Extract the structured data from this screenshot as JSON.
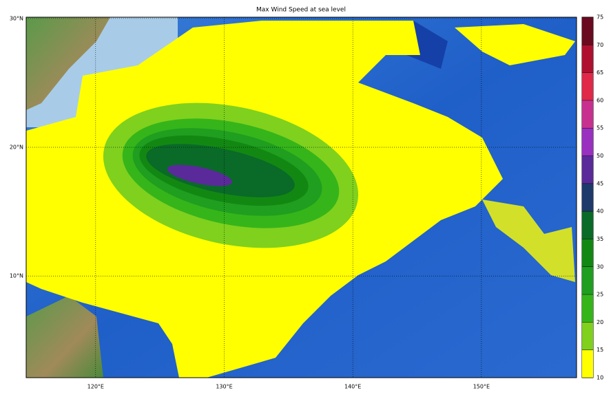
{
  "title": "Max Wind Speed at sea level",
  "map": {
    "lonlim": [
      114.6,
      157.4
    ],
    "latlim": [
      2.1,
      30.1
    ],
    "lon_ticks": [
      {
        "value": 120,
        "label": "120°E"
      },
      {
        "value": 130,
        "label": "130°E"
      },
      {
        "value": 140,
        "label": "140°E"
      },
      {
        "value": 150,
        "label": "150°E"
      }
    ],
    "lat_ticks": [
      {
        "value": 10,
        "label": "10°N"
      },
      {
        "value": 20,
        "label": "20°N"
      },
      {
        "value": 30,
        "label": "30°N"
      }
    ],
    "grid": true
  },
  "colorbar": {
    "levels": [
      10,
      15,
      20,
      25,
      30,
      35,
      40,
      45,
      50,
      55,
      60,
      65,
      70,
      75
    ],
    "colors": [
      "#ffff00",
      "#7fd11d",
      "#35b51a",
      "#1f9e1f",
      "#128812",
      "#0a6a28",
      "#1e3a6a",
      "#5a2a9a",
      "#9a30c0",
      "#c83090",
      "#e02848",
      "#b01030",
      "#6a0a20"
    ]
  }
}
